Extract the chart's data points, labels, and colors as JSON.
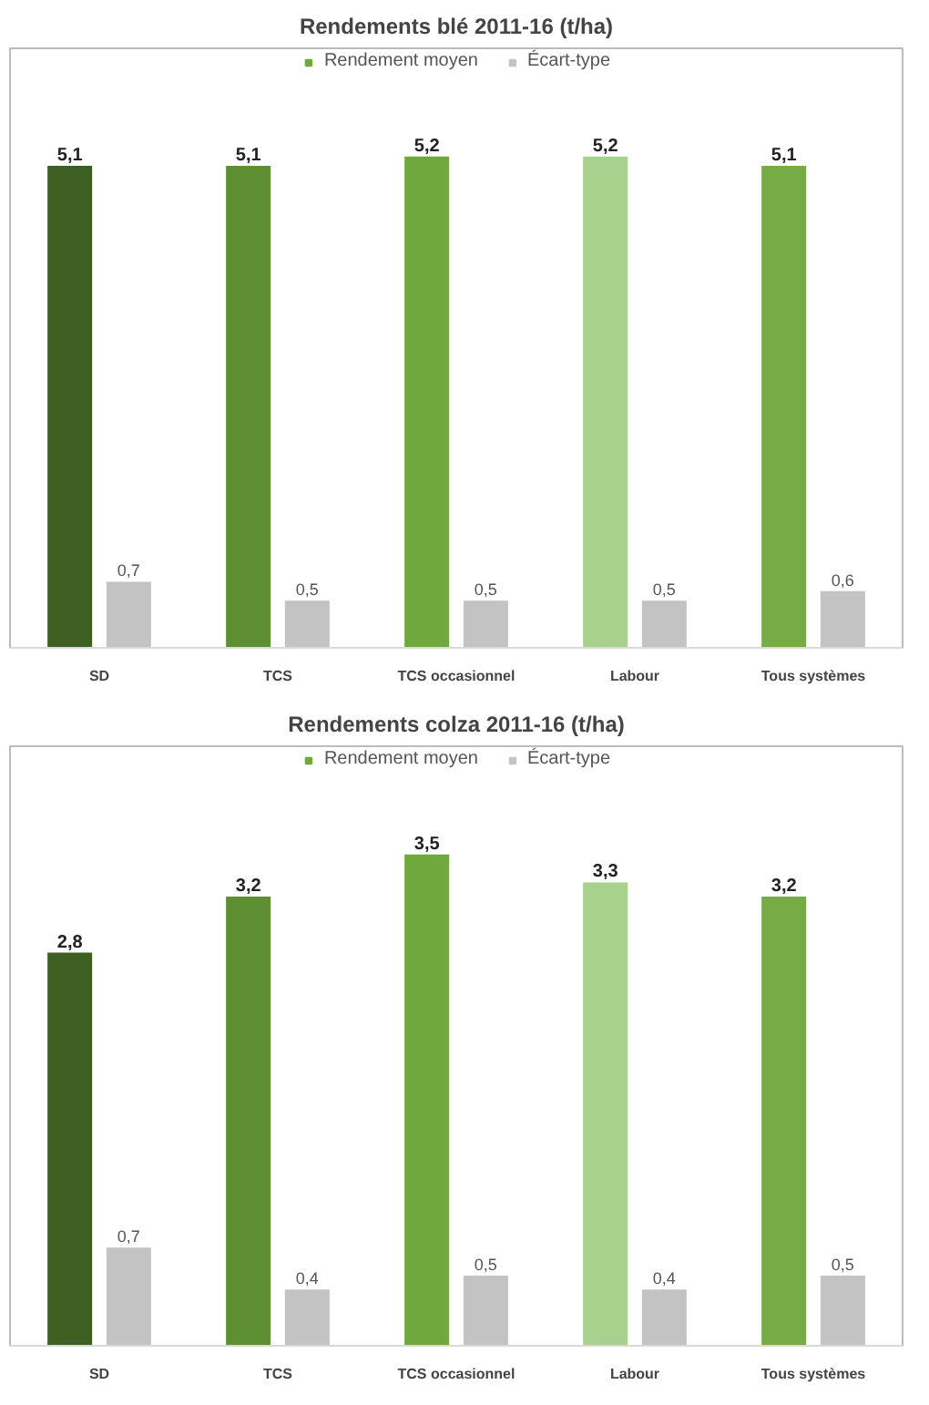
{
  "chart_data": [
    {
      "type": "bar",
      "title": "Rendements blé 2011-16 (t/ha)",
      "categories": [
        "SD",
        "TCS",
        "TCS occasionnel",
        "Labour",
        "Tous systèmes"
      ],
      "legend": "top",
      "grid": false,
      "tick_labels": "x",
      "series": [
        {
          "name": "Rendement moyen",
          "color": "#70a83e",
          "colors": [
            "#3d5f22",
            "#5e8f32",
            "#6fa83c",
            "#a9d18e",
            "#77ab45"
          ],
          "values": [
            5.1,
            5.1,
            5.2,
            5.2,
            5.1
          ],
          "value_labels": [
            "5,1",
            "5,1",
            "5,2",
            "5,2",
            "5,1"
          ]
        },
        {
          "name": "Écart-type",
          "color": "#c3c3c3",
          "values": [
            0.7,
            0.5,
            0.5,
            0.5,
            0.6
          ],
          "value_labels": [
            "0,7",
            "0,5",
            "0,5",
            "0,5",
            "0,6"
          ]
        }
      ]
    },
    {
      "type": "bar",
      "title": "Rendements colza 2011-16 (t/ha)",
      "categories": [
        "SD",
        "TCS",
        "TCS occasionnel",
        "Labour",
        "Tous systèmes"
      ],
      "legend": "top",
      "grid": false,
      "tick_labels": "x",
      "series": [
        {
          "name": "Rendement moyen",
          "color": "#70a83e",
          "colors": [
            "#3d5f22",
            "#5e8f32",
            "#6fa83c",
            "#a9d18e",
            "#77ab45"
          ],
          "values": [
            2.8,
            3.2,
            3.5,
            3.3,
            3.2
          ],
          "value_labels": [
            "2,8",
            "3,2",
            "3,5",
            "3,3",
            "3,2"
          ]
        },
        {
          "name": "Écart-type",
          "color": "#c3c3c3",
          "values": [
            0.7,
            0.4,
            0.5,
            0.4,
            0.5
          ],
          "value_labels": [
            "0,7",
            "0,4",
            "0,5",
            "0,4",
            "0,5"
          ]
        }
      ]
    }
  ]
}
